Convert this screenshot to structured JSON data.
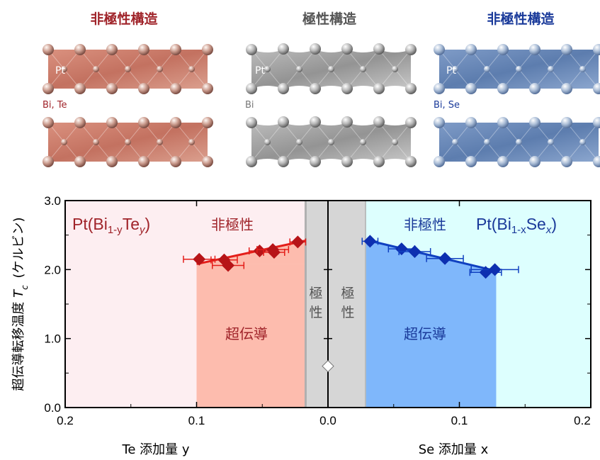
{
  "headers": {
    "left": "非極性構造",
    "middle": "極性構造",
    "right": "非極性構造"
  },
  "crystals": {
    "left_pt": "Pt",
    "left_layer": "Bi, Te",
    "middle_pt": "Pt",
    "middle_layer": "Bi",
    "right_pt": "Pt",
    "right_layer": "Bi, Se"
  },
  "colors": {
    "red_header": "#a0242a",
    "blue_header": "#1a3a9a",
    "gray_header": "#555555",
    "left_bg": "#fdeef1",
    "right_bg": "#ddfffe",
    "sc_red": "#fdbcae",
    "sc_blue": "#7fb7fb",
    "polar_gray": "#d6d6d6",
    "red_series": "#e41e1a",
    "blue_series": "#1040c0"
  },
  "chart_data": {
    "type": "scatter",
    "ylabel_main": "超伝導転移温度",
    "ylabel_symbol": "T",
    "ylabel_sub": "c",
    "ylabel_unit": "(ケルビン)",
    "ylim": [
      0,
      3
    ],
    "yticks": [
      "0.0",
      "1.0",
      "2.0",
      "3.0"
    ],
    "left_axis": {
      "xlabel": "Te 添加量 y",
      "xlim_reversed": [
        0.2,
        0
      ],
      "xticks": [
        "0.2",
        "0.1",
        "0.0"
      ]
    },
    "right_axis": {
      "xlabel": "Se 添加量 x",
      "xlim": [
        0,
        0.2
      ],
      "xticks": [
        "0.1",
        "0.2"
      ]
    },
    "regions": {
      "left_formula_pre": "Pt(Bi",
      "left_formula_sub1": "1-y",
      "left_formula_mid": "Te",
      "left_formula_sub2": "y",
      "left_formula_post": ")",
      "left_nonpolar": "非極性",
      "left_sc": "超伝導",
      "polar_char1": "極",
      "polar_char2": "性",
      "right_nonpolar": "非極性",
      "right_formula_pre": "Pt(Bi",
      "right_formula_sub1": "1-x",
      "right_formula_mid": "Se",
      "right_formula_sub2": "x",
      "right_formula_post": ")",
      "right_sc": "超伝導",
      "left_sc_start": 0.1,
      "left_polar_start": 0.017,
      "right_polar_end": 0.029,
      "right_sc_end": 0.128
    },
    "series": [
      {
        "points": [
          {
            "x": 0.098,
            "y": 2.15,
            "xerr": 0.012
          },
          {
            "x": 0.079,
            "y": 2.14,
            "xerr": 0.01
          },
          {
            "x": 0.076,
            "y": 2.06,
            "xerr": 0.012
          },
          {
            "x": 0.052,
            "y": 2.27,
            "xerr": 0.008
          },
          {
            "x": 0.042,
            "y": 2.29,
            "xerr": 0.012
          },
          {
            "x": 0.041,
            "y": 2.25,
            "xerr": 0.008
          },
          {
            "x": 0.023,
            "y": 2.4,
            "xerr": 0.006
          }
        ],
        "fit": [
          [
            0.1,
            2.08
          ],
          [
            0.017,
            2.42
          ]
        ]
      },
      {
        "points": [
          {
            "x": 0.032,
            "y": 2.41,
            "xerr": 0.006
          },
          {
            "x": 0.056,
            "y": 2.3,
            "xerr": 0.01
          },
          {
            "x": 0.066,
            "y": 2.26,
            "xerr": 0.012
          },
          {
            "x": 0.089,
            "y": 2.16,
            "xerr": 0.014
          },
          {
            "x": 0.12,
            "y": 1.96,
            "xerr": 0.012
          },
          {
            "x": 0.127,
            "y": 2.0,
            "xerr": 0.018
          }
        ],
        "fit": [
          [
            0.029,
            2.43
          ],
          [
            0.128,
            1.98
          ]
        ]
      }
    ],
    "bi_point": {
      "x": 0.0,
      "y": 0.6
    }
  }
}
